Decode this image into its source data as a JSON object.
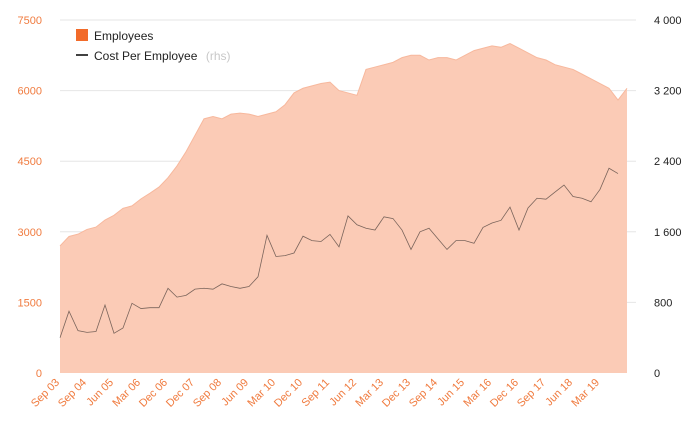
{
  "chart_data": {
    "type": "area",
    "title": "",
    "xlabel": "",
    "ylabel": "",
    "colors": {
      "area": "#fbcbb6",
      "area_stroke": "#f7b89d",
      "line": "#111111",
      "left_ticks": "#f07b3f",
      "x_ticks": "#f07b3f",
      "right_ticks": "#222222",
      "legend_box": "#f26b2a"
    },
    "legend": [
      {
        "label": "Employees",
        "sublabel": ""
      },
      {
        "label": "Cost Per Employee",
        "sublabel": "(rhs)"
      }
    ],
    "x_tick_labels": [
      "Sep 03",
      "Sep 04",
      "Jun 05",
      "Mar 06",
      "Dec 06",
      "Dec 07",
      "Sep 08",
      "Jun 09",
      "Mar 10",
      "Dec 10",
      "Sep 11",
      "Jun 12",
      "Mar 13",
      "Dec 13",
      "Sep 14",
      "Jun 15",
      "Mar 16",
      "Dec 16",
      "Sep 17",
      "Jun 18",
      "Mar 19"
    ],
    "y_left": {
      "ticks": [
        "0",
        "1500",
        "3000",
        "4500",
        "6000",
        "7500"
      ],
      "ylim": [
        0,
        7500
      ]
    },
    "y_right": {
      "ticks": [
        "0",
        "800",
        "1 600",
        "2 400",
        "3 200",
        "4 000"
      ],
      "ylim": [
        0,
        4000
      ]
    },
    "x_range": [
      0,
      64
    ],
    "series": [
      {
        "name": "Employees",
        "axis": "left",
        "type": "area",
        "values": [
          2700,
          2900,
          2950,
          3050,
          3100,
          3250,
          3350,
          3500,
          3550,
          3700,
          3820,
          3950,
          4150,
          4400,
          4700,
          5050,
          5400,
          5450,
          5400,
          5500,
          5520,
          5500,
          5450,
          5500,
          5550,
          5700,
          5950,
          6050,
          6100,
          6150,
          6180,
          6000,
          5950,
          5900,
          6450,
          6500,
          6550,
          6600,
          6700,
          6750,
          6750,
          6650,
          6700,
          6700,
          6650,
          6750,
          6850,
          6900,
          6950,
          6920,
          7000,
          6900,
          6800,
          6700,
          6650,
          6550,
          6500,
          6450,
          6350,
          6250,
          6150,
          6050,
          5800,
          6050
        ]
      },
      {
        "name": "Cost Per Employee",
        "axis": "right",
        "type": "line",
        "values": [
          400,
          700,
          480,
          460,
          470,
          770,
          450,
          510,
          790,
          730,
          740,
          740,
          960,
          860,
          880,
          950,
          960,
          950,
          1010,
          980,
          960,
          980,
          1090,
          1560,
          1320,
          1330,
          1360,
          1550,
          1500,
          1490,
          1570,
          1430,
          1780,
          1680,
          1640,
          1620,
          1770,
          1750,
          1620,
          1400,
          1600,
          1640,
          1520,
          1400,
          1500,
          1500,
          1470,
          1650,
          1700,
          1730,
          1880,
          1620,
          1870,
          1980,
          1970,
          2050,
          2130,
          2000,
          1980,
          1940,
          2080,
          2320,
          2260
        ]
      }
    ]
  }
}
